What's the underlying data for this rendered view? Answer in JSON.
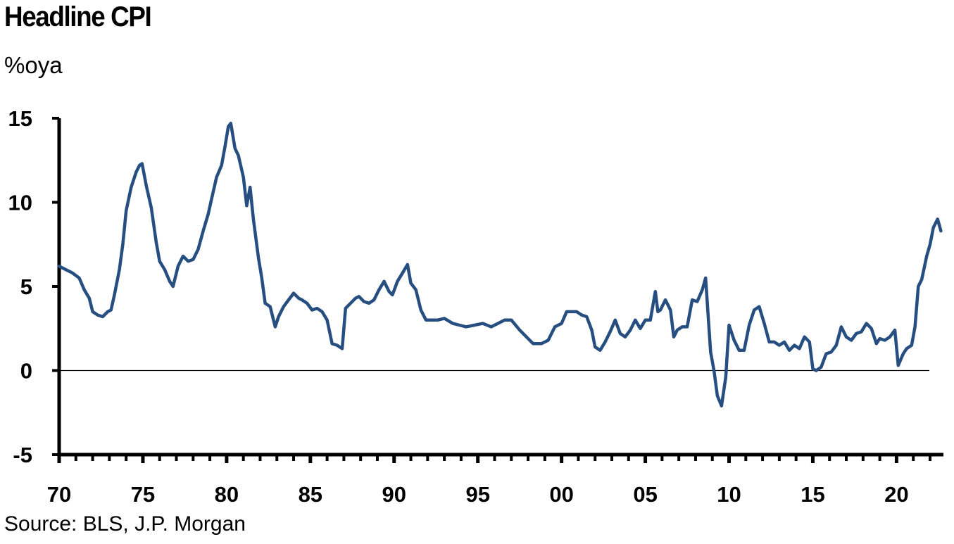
{
  "header": {
    "title": "Headline CPI",
    "subtitle": "%oya"
  },
  "footer": {
    "source": "Source: BLS, J.P. Morgan"
  },
  "colors": {
    "series": "#274E80",
    "axis": "#000000",
    "zero_line": "#000000"
  },
  "chart_data": {
    "type": "line",
    "title": "Headline CPI",
    "ylabel": "%oya",
    "xlim": [
      1970,
      2022.8
    ],
    "ylim": [
      -5,
      15
    ],
    "y_ticks": [
      15,
      10,
      5,
      0,
      -5
    ],
    "y_tick_labels": [
      "15",
      "10",
      "5",
      "0",
      "-5"
    ],
    "x_ticks": [
      1970,
      1975,
      1980,
      1985,
      1990,
      1995,
      2000,
      2005,
      2010,
      2015,
      2020
    ],
    "x_tick_labels": [
      "70",
      "75",
      "80",
      "85",
      "90",
      "95",
      "00",
      "05",
      "10",
      "15",
      "20"
    ],
    "grid": false,
    "legend": "none",
    "series": [
      {
        "x": [
          1970.0,
          1970.4,
          1970.8,
          1971.2,
          1971.5,
          1971.8,
          1972.0,
          1972.3,
          1972.6,
          1972.9,
          1973.1,
          1973.3,
          1973.6,
          1973.8,
          1974.0,
          1974.3,
          1974.6,
          1974.8,
          1974.95,
          1975.2,
          1975.5,
          1975.8,
          1976.0,
          1976.3,
          1976.6,
          1976.8,
          1977.1,
          1977.4,
          1977.7,
          1978.0,
          1978.3,
          1978.6,
          1978.9,
          1979.1,
          1979.4,
          1979.7,
          1979.9,
          1980.1,
          1980.25,
          1980.5,
          1980.7,
          1981.0,
          1981.2,
          1981.4,
          1981.6,
          1981.9,
          1982.1,
          1982.3,
          1982.6,
          1982.9,
          1983.1,
          1983.4,
          1983.7,
          1984.0,
          1984.3,
          1984.5,
          1984.8,
          1985.1,
          1985.4,
          1985.7,
          1986.0,
          1986.3,
          1986.6,
          1986.9,
          1987.1,
          1987.4,
          1987.7,
          1987.9,
          1988.2,
          1988.5,
          1988.8,
          1989.1,
          1989.4,
          1989.7,
          1989.9,
          1990.2,
          1990.5,
          1990.8,
          1991.0,
          1991.3,
          1991.6,
          1991.9,
          1992.2,
          1992.6,
          1993.0,
          1993.5,
          1993.9,
          1994.3,
          1994.8,
          1995.3,
          1995.8,
          1996.2,
          1996.6,
          1997.0,
          1997.5,
          1997.9,
          1998.3,
          1998.8,
          1999.2,
          1999.6,
          2000.0,
          2000.3,
          2000.6,
          2000.9,
          2001.2,
          2001.5,
          2001.8,
          2002.0,
          2002.3,
          2002.6,
          2002.9,
          2003.2,
          2003.5,
          2003.8,
          2004.1,
          2004.4,
          2004.7,
          2005.0,
          2005.3,
          2005.6,
          2005.75,
          2005.9,
          2006.2,
          2006.5,
          2006.7,
          2006.9,
          2007.2,
          2007.5,
          2007.8,
          2008.1,
          2008.4,
          2008.6,
          2008.9,
          2009.1,
          2009.3,
          2009.55,
          2009.8,
          2010.0,
          2010.3,
          2010.6,
          2010.9,
          2011.2,
          2011.5,
          2011.8,
          2012.1,
          2012.4,
          2012.7,
          2013.0,
          2013.3,
          2013.6,
          2013.9,
          2014.2,
          2014.5,
          2014.8,
          2015.0,
          2015.2,
          2015.5,
          2015.8,
          2016.1,
          2016.4,
          2016.7,
          2017.0,
          2017.3,
          2017.6,
          2017.9,
          2018.2,
          2018.5,
          2018.8,
          2019.0,
          2019.3,
          2019.6,
          2019.9,
          2020.1,
          2020.4,
          2020.6,
          2020.9,
          2021.1,
          2021.3,
          2021.5,
          2021.8,
          2022.0,
          2022.2,
          2022.45,
          2022.65
        ],
        "y": [
          6.2,
          6.0,
          5.8,
          5.5,
          4.8,
          4.3,
          3.5,
          3.3,
          3.2,
          3.5,
          3.6,
          4.5,
          6.0,
          7.5,
          9.5,
          10.9,
          11.8,
          12.2,
          12.3,
          11.0,
          9.7,
          7.6,
          6.5,
          6.0,
          5.3,
          5.0,
          6.2,
          6.8,
          6.5,
          6.6,
          7.2,
          8.3,
          9.3,
          10.2,
          11.5,
          12.2,
          13.3,
          14.5,
          14.7,
          13.2,
          12.8,
          11.5,
          9.8,
          10.9,
          9.0,
          6.7,
          5.5,
          4.0,
          3.8,
          2.6,
          3.2,
          3.8,
          4.2,
          4.6,
          4.3,
          4.2,
          4.0,
          3.6,
          3.7,
          3.5,
          3.0,
          1.6,
          1.5,
          1.3,
          3.7,
          4.0,
          4.3,
          4.4,
          4.1,
          4.0,
          4.2,
          4.8,
          5.3,
          4.7,
          4.5,
          5.3,
          5.8,
          6.3,
          5.2,
          4.8,
          3.6,
          3.0,
          3.0,
          3.0,
          3.1,
          2.8,
          2.7,
          2.6,
          2.7,
          2.8,
          2.6,
          2.8,
          3.0,
          3.0,
          2.4,
          2.0,
          1.6,
          1.6,
          1.8,
          2.6,
          2.8,
          3.5,
          3.5,
          3.5,
          3.3,
          3.2,
          2.4,
          1.4,
          1.2,
          1.7,
          2.3,
          3.0,
          2.2,
          2.0,
          2.4,
          3.0,
          2.5,
          3.0,
          3.0,
          4.7,
          3.5,
          3.6,
          4.2,
          3.6,
          2.0,
          2.4,
          2.6,
          2.6,
          4.2,
          4.1,
          4.8,
          5.5,
          1.1,
          0.0,
          -1.5,
          -2.1,
          -0.4,
          2.7,
          1.8,
          1.2,
          1.2,
          2.7,
          3.6,
          3.8,
          2.8,
          1.7,
          1.7,
          1.5,
          1.7,
          1.2,
          1.5,
          1.3,
          2.0,
          1.7,
          0.1,
          0.0,
          0.2,
          1.0,
          1.1,
          1.5,
          2.6,
          2.0,
          1.8,
          2.2,
          2.3,
          2.8,
          2.5,
          1.6,
          1.9,
          1.8,
          2.0,
          2.4,
          0.3,
          1.0,
          1.3,
          1.5,
          2.6,
          5.0,
          5.4,
          6.8,
          7.5,
          8.5,
          9.0,
          8.3
        ]
      }
    ]
  }
}
